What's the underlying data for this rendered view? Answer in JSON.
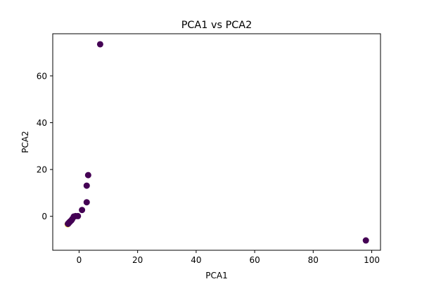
{
  "chart_data": {
    "type": "scatter",
    "title": "PCA1 vs PCA2",
    "xlabel": "PCA1",
    "ylabel": "PCA2",
    "xlim": [
      -9,
      103
    ],
    "ylim": [
      -14.5,
      78
    ],
    "xticks": [
      0,
      20,
      40,
      60,
      80,
      100
    ],
    "yticks": [
      0,
      20,
      40,
      60
    ],
    "grid": false,
    "marker_color": "#440154",
    "highlight_color": "#fde725",
    "points": [
      {
        "x": 7.2,
        "y": 73.5,
        "group": 0
      },
      {
        "x": 98.0,
        "y": -10.3,
        "group": 0
      },
      {
        "x": 3.1,
        "y": 17.6,
        "group": 0
      },
      {
        "x": 2.6,
        "y": 13.1,
        "group": 0
      },
      {
        "x": 2.6,
        "y": 6.0,
        "group": 0
      },
      {
        "x": 1.0,
        "y": 2.7,
        "group": 0
      },
      {
        "x": -0.4,
        "y": 0.1,
        "group": 0
      },
      {
        "x": -1.2,
        "y": 0.1,
        "group": 0
      },
      {
        "x": -1.8,
        "y": -0.1,
        "group": 0
      },
      {
        "x": -2.3,
        "y": -1.1,
        "group": 0
      },
      {
        "x": -2.6,
        "y": -1.7,
        "group": 0
      },
      {
        "x": -2.9,
        "y": -2.0,
        "group": 0
      },
      {
        "x": -3.2,
        "y": -2.4,
        "group": 0
      },
      {
        "x": -3.5,
        "y": -2.8,
        "group": 0
      },
      {
        "x": -3.7,
        "y": -3.1,
        "group": 0
      },
      {
        "x": -3.9,
        "y": -3.4,
        "group": 1
      },
      {
        "x": -3.8,
        "y": -3.2,
        "group": 0
      }
    ]
  }
}
